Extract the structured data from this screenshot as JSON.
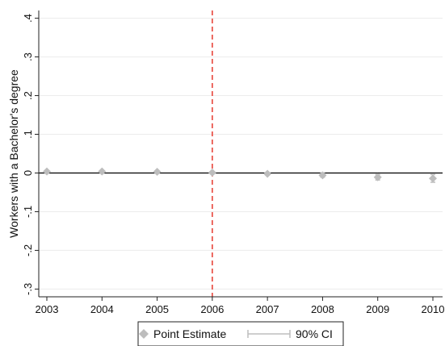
{
  "chart_data": {
    "type": "scatter",
    "title": "",
    "xlabel": "",
    "ylabel": "Workers with a Bachelor's degree",
    "x_ticks": [
      "2003",
      "2004",
      "2005",
      "2006",
      "2007",
      "2008",
      "2009",
      "2010"
    ],
    "y_ticks": [
      ".4",
      ".3",
      ".2",
      ".1",
      "0",
      "-.1",
      "-.2",
      "-.3"
    ],
    "y_tick_values": [
      0.4,
      0.3,
      0.2,
      0.1,
      0,
      -0.1,
      -0.2,
      -0.3
    ],
    "ylim": [
      -0.32,
      0.42
    ],
    "xlim": [
      2003,
      2010
    ],
    "grid": true,
    "reference_line_y": 0,
    "reference_line_x": 2006,
    "legend_position": "bottom",
    "series": [
      {
        "name": "Point Estimate",
        "marker": "diamond",
        "color": "#bdbdbd",
        "x": [
          2003,
          2004,
          2005,
          2006,
          2007,
          2008,
          2009,
          2010
        ],
        "y": [
          0.004,
          0.004,
          0.003,
          0.001,
          -0.002,
          -0.006,
          -0.011,
          -0.014
        ],
        "ci_low": [
          0.002,
          0.002,
          0.001,
          -0.001,
          -0.005,
          -0.011,
          -0.018,
          -0.024
        ],
        "ci_high": [
          0.006,
          0.006,
          0.005,
          0.003,
          0.001,
          -0.001,
          -0.004,
          -0.004
        ]
      }
    ],
    "legend": [
      {
        "label": "Point Estimate",
        "symbol": "diamond"
      },
      {
        "label": "90% CI",
        "symbol": "capped-line"
      }
    ],
    "colors": {
      "marker": "#bdbdbd",
      "ci": "#bdbdbd",
      "vline": "#e8443a",
      "zero_line": "#000000",
      "grid": "#ececec"
    }
  }
}
